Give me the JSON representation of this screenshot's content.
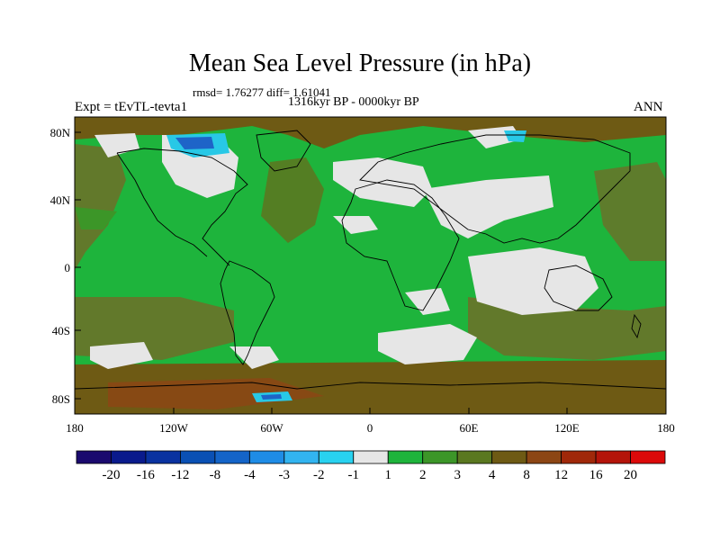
{
  "title": "Mean Sea Level Pressure (in hPa)",
  "stats": "rmsd= 1.76277 diff= 1.61041",
  "period": "1316kyr BP - 0000kyr BP",
  "experiment": "Expt = tEvTL-tevta1",
  "season": "ANN",
  "lat_labels": [
    "80N",
    "40N",
    "0",
    "40S",
    "80S"
  ],
  "lon_labels": [
    "180",
    "120W",
    "60W",
    "0",
    "60E",
    "120E",
    "180"
  ],
  "colorbar": {
    "labels": [
      "-20",
      "-16",
      "-12",
      "-8",
      "-4",
      "-3",
      "-2",
      "-1",
      "1",
      "2",
      "3",
      "4",
      "8",
      "12",
      "16",
      "20"
    ],
    "colors": [
      "#1a0a6e",
      "#0a1a8c",
      "#0a32a0",
      "#0a50b4",
      "#1464c8",
      "#1e8ce6",
      "#32b4f0",
      "#28d2f0",
      "#e6e6e6",
      "#1eb43c",
      "#3c9628",
      "#5a7820",
      "#6e5a14",
      "#8c4614",
      "#a0280a",
      "#b4140a",
      "#dc0a0a"
    ]
  },
  "field_colors": {
    "background": "#1eb43c",
    "white": "#e6e6e6",
    "olive": "#6e6e28",
    "brown": "#7a5a1e",
    "cyan": "#28c8e6",
    "blue": "#1e64c8",
    "darkgreen": "#3c9628"
  }
}
